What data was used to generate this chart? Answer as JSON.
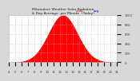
{
  "bg_color": "#d8d8d8",
  "plot_bg_color": "#ffffff",
  "fill_color": "#ff0000",
  "line_color": "#ff0000",
  "grid_color": "#bbbbbb",
  "text_color": "#444444",
  "title_color": "#222222",
  "peak_hour": 12.5,
  "sigma": 2.3,
  "x_start": 4,
  "x_end": 21,
  "y_max": 1000,
  "vline1_x": 12.3,
  "vline2_x": 14.8,
  "vline_color": "#888888",
  "x_ticks": [
    4,
    5,
    6,
    7,
    8,
    9,
    10,
    11,
    12,
    13,
    14,
    15,
    16,
    17,
    18,
    19,
    20,
    21
  ],
  "x_tick_labels": [
    "4",
    "5",
    "6",
    "7",
    "8",
    "9",
    "10",
    "11",
    "12",
    "13",
    "14",
    "15",
    "16",
    "17",
    "18",
    "19",
    "20",
    "21"
  ],
  "y_ticks": [
    0,
    200,
    400,
    600,
    800,
    1000
  ],
  "y_tick_labels": [
    "0",
    "200",
    "400",
    "600",
    "800",
    "1000"
  ],
  "legend_solar_color": "#ff0000",
  "legend_avg_color": "#0000ff",
  "title_line1": "Milwaukee Weather Solar Radiation",
  "title_line2": "& Day Average  per Minute  (Today)"
}
